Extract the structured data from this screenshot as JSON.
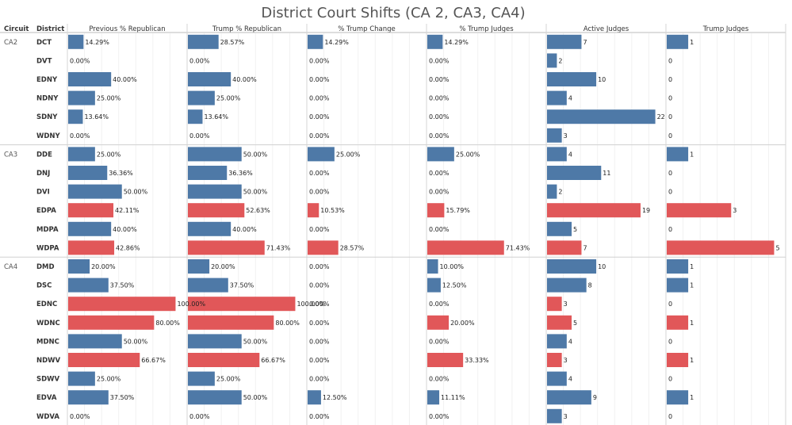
{
  "chart_data": {
    "type": "bar",
    "title": "District Court Shifts (CA 2, CA3, CA4)",
    "row_headers": [
      "Circuit",
      "District"
    ],
    "columns": [
      {
        "key": "prev_rep",
        "label": "Previous % Republican",
        "unit": "%",
        "max": 110
      },
      {
        "key": "trump_rep",
        "label": "Trump % Republican",
        "unit": "%",
        "max": 110
      },
      {
        "key": "trump_change",
        "label": "% Trump Change",
        "unit": "%",
        "max": 110
      },
      {
        "key": "trump_judges_pct",
        "label": "% Trump Judges",
        "unit": "%",
        "max": 110
      },
      {
        "key": "active_judges",
        "label": "Active Judges",
        "unit": "",
        "max": 24
      },
      {
        "key": "trump_judges",
        "label": "Trump Judges",
        "unit": "",
        "max": 5.5
      }
    ],
    "colors": {
      "blue": "#4e79a7",
      "red": "#e15759"
    },
    "groups": [
      {
        "circuit": "CA2",
        "rows": [
          {
            "district": "DCT",
            "highlight": false,
            "values": [
              14.29,
              28.57,
              14.29,
              14.29,
              7,
              1
            ]
          },
          {
            "district": "DVT",
            "highlight": false,
            "values": [
              0,
              0,
              0,
              0,
              2,
              0
            ]
          },
          {
            "district": "EDNY",
            "highlight": false,
            "values": [
              40,
              40,
              0,
              0,
              10,
              0
            ]
          },
          {
            "district": "NDNY",
            "highlight": false,
            "values": [
              25,
              25,
              0,
              0,
              4,
              0
            ]
          },
          {
            "district": "SDNY",
            "highlight": false,
            "values": [
              13.64,
              13.64,
              0,
              0,
              22,
              0
            ]
          },
          {
            "district": "WDNY",
            "highlight": false,
            "values": [
              0,
              0,
              0,
              0,
              3,
              0
            ]
          }
        ]
      },
      {
        "circuit": "CA3",
        "rows": [
          {
            "district": "DDE",
            "highlight": false,
            "values": [
              25,
              50,
              25,
              25,
              4,
              1
            ]
          },
          {
            "district": "DNJ",
            "highlight": false,
            "values": [
              36.36,
              36.36,
              0,
              0,
              11,
              0
            ]
          },
          {
            "district": "DVI",
            "highlight": false,
            "values": [
              50,
              50,
              0,
              0,
              2,
              0
            ]
          },
          {
            "district": "EDPA",
            "highlight": true,
            "values": [
              42.11,
              52.63,
              10.53,
              15.79,
              19,
              3
            ]
          },
          {
            "district": "MDPA",
            "highlight": false,
            "values": [
              40,
              40,
              0,
              0,
              5,
              0
            ]
          },
          {
            "district": "WDPA",
            "highlight": true,
            "values": [
              42.86,
              71.43,
              28.57,
              71.43,
              7,
              5
            ]
          }
        ]
      },
      {
        "circuit": "CA4",
        "rows": [
          {
            "district": "DMD",
            "highlight": false,
            "values": [
              20,
              20,
              0,
              10,
              10,
              1
            ]
          },
          {
            "district": "DSC",
            "highlight": false,
            "values": [
              37.5,
              37.5,
              0,
              12.5,
              8,
              1
            ]
          },
          {
            "district": "EDNC",
            "highlight": true,
            "values": [
              100,
              100,
              0,
              0,
              3,
              0
            ]
          },
          {
            "district": "WDNC",
            "highlight": true,
            "values": [
              80,
              80,
              0,
              20,
              5,
              1
            ]
          },
          {
            "district": "MDNC",
            "highlight": false,
            "values": [
              50,
              50,
              0,
              0,
              4,
              0
            ]
          },
          {
            "district": "NDWV",
            "highlight": true,
            "values": [
              66.67,
              66.67,
              0,
              33.33,
              3,
              1
            ]
          },
          {
            "district": "SDWV",
            "highlight": false,
            "values": [
              25,
              25,
              0,
              0,
              4,
              0
            ]
          },
          {
            "district": "EDVA",
            "highlight": false,
            "values": [
              37.5,
              50,
              12.5,
              11.11,
              9,
              1
            ]
          },
          {
            "district": "WDVA",
            "highlight": false,
            "values": [
              0,
              0,
              0,
              0,
              3,
              0
            ]
          }
        ]
      }
    ]
  }
}
